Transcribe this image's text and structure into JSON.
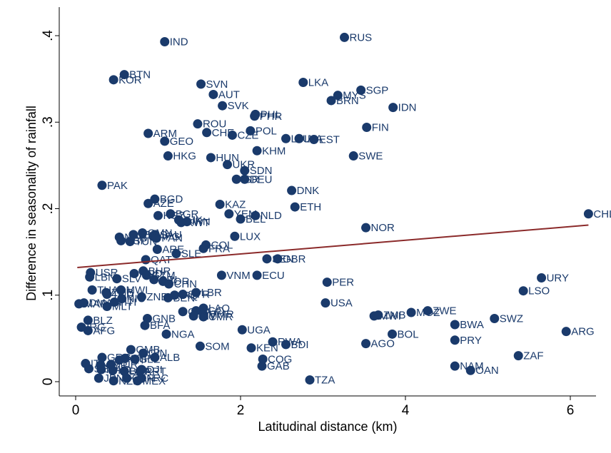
{
  "chart_data": {
    "type": "scatter",
    "xlabel": "Latitudinal distance (km)",
    "ylabel": "Difference in seasonality of rainfall",
    "xlim": [
      -0.1,
      6.3
    ],
    "ylim": [
      -0.01,
      0.42
    ],
    "x_ticks": [
      0,
      2,
      4,
      6
    ],
    "y_ticks": [
      0,
      0.1,
      0.2,
      0.3,
      0.4
    ],
    "y_tick_labels": [
      "0",
      ".1",
      ".2",
      ".3",
      ".4"
    ],
    "grid": false,
    "marker_color": "#1a3a6b",
    "fit_line": {
      "x": [
        0.02,
        6.22
      ],
      "y": [
        0.132,
        0.181
      ],
      "color": "#8b2a2a"
    },
    "points": [
      {
        "label": "IND",
        "x": 1.08,
        "y": 0.393
      },
      {
        "label": "RUS",
        "x": 3.26,
        "y": 0.398
      },
      {
        "label": "BTN",
        "x": 0.59,
        "y": 0.355
      },
      {
        "label": "KOR",
        "x": 0.46,
        "y": 0.349
      },
      {
        "label": "SVN",
        "x": 1.52,
        "y": 0.344
      },
      {
        "label": "LKA",
        "x": 2.76,
        "y": 0.346
      },
      {
        "label": "AUT",
        "x": 1.67,
        "y": 0.332
      },
      {
        "label": "SGP",
        "x": 3.46,
        "y": 0.337
      },
      {
        "label": "MYS",
        "x": 3.18,
        "y": 0.331
      },
      {
        "label": "BRN",
        "x": 3.1,
        "y": 0.325
      },
      {
        "label": "IDN",
        "x": 3.85,
        "y": 0.317
      },
      {
        "label": "SVK",
        "x": 1.78,
        "y": 0.319
      },
      {
        "label": "PHL",
        "x": 2.18,
        "y": 0.309
      },
      {
        "label": "PHR",
        "x": 2.17,
        "y": 0.307
      },
      {
        "label": "ROU",
        "x": 1.48,
        "y": 0.298
      },
      {
        "label": "FIN",
        "x": 3.53,
        "y": 0.294
      },
      {
        "label": "ARM",
        "x": 0.88,
        "y": 0.287
      },
      {
        "label": "CHE",
        "x": 1.59,
        "y": 0.288
      },
      {
        "label": "CZE",
        "x": 1.9,
        "y": 0.285
      },
      {
        "label": "POL",
        "x": 2.12,
        "y": 0.29
      },
      {
        "label": "GEO",
        "x": 1.08,
        "y": 0.278
      },
      {
        "label": "LTU",
        "x": 2.55,
        "y": 0.281
      },
      {
        "label": "LVA",
        "x": 2.71,
        "y": 0.281
      },
      {
        "label": "EST",
        "x": 2.89,
        "y": 0.28
      },
      {
        "label": "KHM",
        "x": 2.2,
        "y": 0.267
      },
      {
        "label": "HKG",
        "x": 1.12,
        "y": 0.261
      },
      {
        "label": "HUN",
        "x": 1.64,
        "y": 0.259
      },
      {
        "label": "SWE",
        "x": 3.37,
        "y": 0.261
      },
      {
        "label": "UKR",
        "x": 1.84,
        "y": 0.251
      },
      {
        "label": "SDN",
        "x": 2.05,
        "y": 0.244
      },
      {
        "label": "DEU",
        "x": 2.05,
        "y": 0.234
      },
      {
        "label": "ISR",
        "x": 1.95,
        "y": 0.234
      },
      {
        "label": "PAK",
        "x": 0.32,
        "y": 0.227
      },
      {
        "label": "DNK",
        "x": 2.62,
        "y": 0.221
      },
      {
        "label": "BGD",
        "x": 0.96,
        "y": 0.211
      },
      {
        "label": "AZE",
        "x": 0.88,
        "y": 0.206
      },
      {
        "label": "KAZ",
        "x": 1.75,
        "y": 0.205
      },
      {
        "label": "ETH",
        "x": 2.66,
        "y": 0.202
      },
      {
        "label": "BGR",
        "x": 1.15,
        "y": 0.194
      },
      {
        "label": "YEM",
        "x": 1.86,
        "y": 0.194
      },
      {
        "label": "NLD",
        "x": 2.18,
        "y": 0.192
      },
      {
        "label": "KGZ",
        "x": 1.0,
        "y": 0.192
      },
      {
        "label": "BEL",
        "x": 2.0,
        "y": 0.188
      },
      {
        "label": "TJK",
        "x": 1.25,
        "y": 0.187
      },
      {
        "label": "IRN",
        "x": 1.35,
        "y": 0.185
      },
      {
        "label": "KWT",
        "x": 1.28,
        "y": 0.184
      },
      {
        "label": "NOR",
        "x": 3.52,
        "y": 0.178
      },
      {
        "label": "SAU",
        "x": 0.96,
        "y": 0.17
      },
      {
        "label": "LUX",
        "x": 1.93,
        "y": 0.168
      },
      {
        "label": "NER",
        "x": 0.53,
        "y": 0.167
      },
      {
        "label": "LBY",
        "x": 0.7,
        "y": 0.17
      },
      {
        "label": "OMN",
        "x": 0.81,
        "y": 0.172
      },
      {
        "label": "AFG",
        "x": 0.94,
        "y": 0.168
      },
      {
        "label": "ESP",
        "x": 0.55,
        "y": 0.163
      },
      {
        "label": "TUN",
        "x": 0.66,
        "y": 0.162
      },
      {
        "label": "PAN",
        "x": 0.98,
        "y": 0.166
      },
      {
        "label": "COL",
        "x": 1.58,
        "y": 0.158
      },
      {
        "label": "FRA",
        "x": 1.55,
        "y": 0.154
      },
      {
        "label": "ARE",
        "x": 0.99,
        "y": 0.153
      },
      {
        "label": "SLE",
        "x": 1.22,
        "y": 0.148
      },
      {
        "label": "SEN",
        "x": 2.32,
        "y": 0.142
      },
      {
        "label": "GBR",
        "x": 2.45,
        "y": 0.142
      },
      {
        "label": "QAT",
        "x": 0.85,
        "y": 0.141
      },
      {
        "label": "BHR",
        "x": 0.82,
        "y": 0.128
      },
      {
        "label": "URY",
        "x": 5.65,
        "y": 0.12
      },
      {
        "label": "VNM",
        "": 0,
        "x": 1.77,
        "y": 0.123
      },
      {
        "label": "ECU",
        "x": 2.2,
        "y": 0.123
      },
      {
        "label": "USR",
        "x": 0.18,
        "y": 0.126
      },
      {
        "label": "HND",
        "x": 0.71,
        "y": 0.125
      },
      {
        "label": "GTM",
        "x": 0.86,
        "y": 0.123
      },
      {
        "label": "LBN",
        "x": 0.17,
        "y": 0.121
      },
      {
        "label": "SLV",
        "x": 0.5,
        "y": 0.119
      },
      {
        "label": "CRI",
        "x": 0.95,
        "y": 0.118
      },
      {
        "label": "JOR",
        "x": 1.06,
        "y": 0.116
      },
      {
        "label": "PER",
        "x": 3.05,
        "y": 0.115
      },
      {
        "label": "CHN",
        "x": 1.13,
        "y": 0.113
      },
      {
        "label": "THA",
        "x": 0.2,
        "y": 0.106
      },
      {
        "label": "MWI",
        "x": 0.55,
        "y": 0.106
      },
      {
        "label": "LSO",
        "x": 5.43,
        "y": 0.105
      },
      {
        "label": "LBR",
        "x": 1.46,
        "y": 0.103
      },
      {
        "label": "SYR",
        "x": 1.3,
        "y": 0.101
      },
      {
        "label": "IRQ",
        "x": 1.2,
        "y": 0.1
      },
      {
        "label": "ZMB",
        "x": 0.37,
        "y": 0.103
      },
      {
        "label": "TCD",
        "x": 0.38,
        "y": 0.101
      },
      {
        "label": "ZNB",
        "x": 0.8,
        "y": 0.098
      },
      {
        "label": "BEN",
        "x": 1.12,
        "y": 0.097
      },
      {
        "label": "NIC",
        "x": 0.56,
        "y": 0.096
      },
      {
        "label": "MAR",
        "x": 0.04,
        "y": 0.09
      },
      {
        "label": "DMA",
        "x": 0.1,
        "y": 0.091
      },
      {
        "label": "USA",
        "x": 3.03,
        "y": 0.091
      },
      {
        "label": "MLT",
        "x": 0.38,
        "y": 0.087
      },
      {
        "label": "HTI",
        "x": 0.47,
        "y": 0.092
      },
      {
        "label": "LAO",
        "x": 1.55,
        "y": 0.085
      },
      {
        "label": "TGO",
        "x": 1.46,
        "y": 0.082
      },
      {
        "label": "GHA",
        "x": 1.3,
        "y": 0.081
      },
      {
        "label": "MMR",
        "x": 1.55,
        "y": 0.078
      },
      {
        "label": "CIV",
        "x": 1.43,
        "y": 0.076
      },
      {
        "label": "CMR",
        "x": 1.55,
        "y": 0.075
      },
      {
        "label": "BWA",
        "x": 4.6,
        "y": 0.066
      },
      {
        "label": "ZWE",
        "x": 4.27,
        "y": 0.082
      },
      {
        "label": "MOZ",
        "x": 4.07,
        "y": 0.08
      },
      {
        "label": "ZMB",
        "x": 3.67,
        "y": 0.077
      },
      {
        "label": "MWI",
        "x": 3.62,
        "y": 0.076
      },
      {
        "label": "SWZ",
        "x": 5.08,
        "y": 0.073
      },
      {
        "label": "GNB",
        "x": 0.87,
        "y": 0.073
      },
      {
        "label": "BLZ",
        "x": 0.15,
        "y": 0.071
      },
      {
        "label": "BFA",
        "x": 0.84,
        "y": 0.065
      },
      {
        "label": "IRG",
        "x": 0.07,
        "y": 0.063
      },
      {
        "label": "AFG",
        "x": 0.15,
        "y": 0.059
      },
      {
        "label": "UGA",
        "x": 2.02,
        "y": 0.06
      },
      {
        "label": "ARG",
        "x": 5.95,
        "y": 0.058
      },
      {
        "label": "NGA",
        "x": 1.1,
        "y": 0.055
      },
      {
        "label": "BOL",
        "x": 3.84,
        "y": 0.055
      },
      {
        "label": "PRY",
        "x": 4.6,
        "y": 0.048
      },
      {
        "label": "RWA",
        "x": 2.39,
        "y": 0.046
      },
      {
        "label": "BDI",
        "x": 2.55,
        "y": 0.043
      },
      {
        "label": "KEN",
        "x": 2.13,
        "y": 0.039
      },
      {
        "label": "SOM",
        "x": 1.51,
        "y": 0.041
      },
      {
        "label": "AGO",
        "x": 3.52,
        "y": 0.044
      },
      {
        "label": "GMB",
        "x": 0.67,
        "y": 0.037
      },
      {
        "label": "GIN",
        "x": 0.82,
        "y": 0.033
      },
      {
        "label": "ALB",
        "x": 0.96,
        "y": 0.028
      },
      {
        "label": "ZAF",
        "x": 5.37,
        "y": 0.03
      },
      {
        "label": "COG",
        "x": 2.27,
        "y": 0.026
      },
      {
        "label": "GAB",
        "x": 2.26,
        "y": 0.018
      },
      {
        "label": "NAM",
        "x": 4.6,
        "y": 0.018
      },
      {
        "label": "OAN",
        "x": 4.79,
        "y": 0.013
      },
      {
        "label": "ITA",
        "x": 0.12,
        "y": 0.021
      },
      {
        "label": "GRC",
        "x": 0.32,
        "y": 0.028
      },
      {
        "label": "PRT",
        "x": 0.53,
        "y": 0.025
      },
      {
        "label": "STP",
        "x": 0.6,
        "y": 0.027
      },
      {
        "label": "SLE",
        "x": 0.72,
        "y": 0.026
      },
      {
        "label": "TUR",
        "x": 0.43,
        "y": 0.02
      },
      {
        "label": "CYP",
        "x": 0.3,
        "y": 0.019
      },
      {
        "label": "SEN",
        "x": 0.16,
        "y": 0.015
      },
      {
        "label": "MAC",
        "x": 0.31,
        "y": 0.014
      },
      {
        "label": "IRL",
        "x": 0.45,
        "y": 0.013
      },
      {
        "label": "BRA",
        "x": 0.59,
        "y": 0.012
      },
      {
        "label": "DJI",
        "x": 0.8,
        "y": 0.014
      },
      {
        "label": "PRT",
        "x": 0.78,
        "y": 0.012
      },
      {
        "label": "JPN",
        "x": 0.28,
        "y": 0.004
      },
      {
        "label": "NZL",
        "x": 0.46,
        "y": 0.001
      },
      {
        "label": "CAN",
        "x": 0.62,
        "y": 0.004
      },
      {
        "label": "MEX",
        "x": 0.75,
        "y": 0.001
      },
      {
        "label": "FRC",
        "x": 0.8,
        "y": 0.004
      },
      {
        "label": "TZA",
        "x": 2.84,
        "y": 0.002
      },
      {
        "label": "CHL",
        "x": 6.22,
        "y": 0.194
      }
    ]
  }
}
